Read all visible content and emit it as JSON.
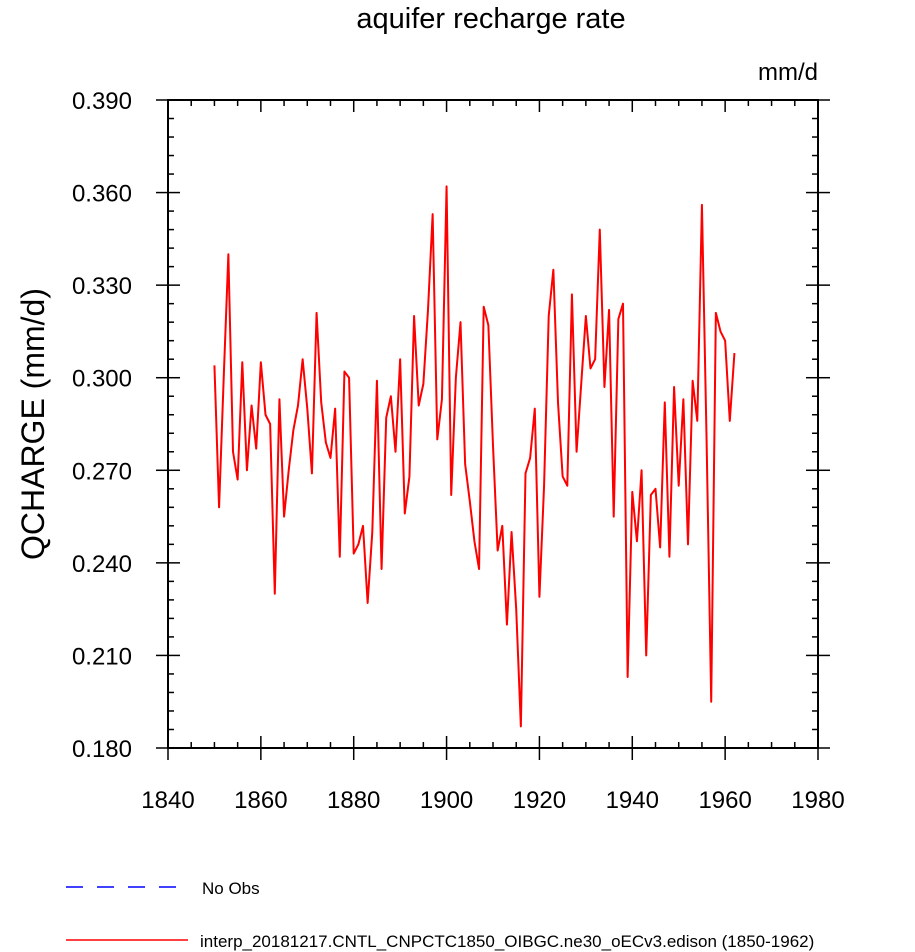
{
  "chart_data": {
    "type": "line",
    "title": "aquifer recharge rate",
    "units": "mm/d",
    "xlabel": "",
    "ylabel": "QCHARGE  (mm/d)",
    "xlim": [
      1840,
      1980
    ],
    "ylim": [
      0.18,
      0.39
    ],
    "xticks": [
      1840,
      1860,
      1880,
      1900,
      1920,
      1940,
      1960,
      1980
    ],
    "yticks": [
      0.18,
      0.21,
      0.24,
      0.27,
      0.3,
      0.33,
      0.36,
      0.39
    ],
    "ytick_labels": [
      "0.180",
      "0.210",
      "0.240",
      "0.270",
      "0.300",
      "0.330",
      "0.360",
      "0.390"
    ],
    "grid": false,
    "legend_position": "bottom",
    "legend": [
      {
        "label": "No Obs",
        "color": "#0000ff",
        "style": "dashed"
      },
      {
        "label": "interp_20181217.CNTL_CNPCTC1850_OIBGC.ne30_oECv3.edison (1850-1962)",
        "color": "#ff0000",
        "style": "solid"
      }
    ],
    "series": [
      {
        "name": "interp_20181217.CNTL_CNPCTC1850_OIBGC.ne30_oECv3.edison (1850-1962)",
        "color": "#ff0000",
        "x_start": 1850,
        "x_step": 1,
        "values": [
          0.304,
          0.258,
          0.3,
          0.34,
          0.276,
          0.267,
          0.305,
          0.27,
          0.291,
          0.277,
          0.305,
          0.288,
          0.285,
          0.23,
          0.293,
          0.255,
          0.27,
          0.283,
          0.291,
          0.306,
          0.29,
          0.269,
          0.321,
          0.292,
          0.279,
          0.274,
          0.29,
          0.242,
          0.302,
          0.3,
          0.243,
          0.246,
          0.252,
          0.227,
          0.25,
          0.299,
          0.238,
          0.287,
          0.294,
          0.276,
          0.306,
          0.256,
          0.268,
          0.32,
          0.291,
          0.298,
          0.322,
          0.353,
          0.28,
          0.293,
          0.362,
          0.262,
          0.3,
          0.318,
          0.272,
          0.26,
          0.247,
          0.238,
          0.323,
          0.317,
          0.278,
          0.244,
          0.252,
          0.22,
          0.25,
          0.225,
          0.187,
          0.269,
          0.274,
          0.29,
          0.229,
          0.265,
          0.32,
          0.335,
          0.292,
          0.268,
          0.265,
          0.327,
          0.276,
          0.298,
          0.32,
          0.303,
          0.306,
          0.348,
          0.297,
          0.322,
          0.255,
          0.319,
          0.324,
          0.203,
          0.263,
          0.247,
          0.27,
          0.21,
          0.262,
          0.264,
          0.245,
          0.292,
          0.242,
          0.297,
          0.265,
          0.293,
          0.246,
          0.299,
          0.286,
          0.356,
          0.28,
          0.195,
          0.321,
          0.315,
          0.312,
          0.286,
          0.308
        ]
      }
    ]
  }
}
